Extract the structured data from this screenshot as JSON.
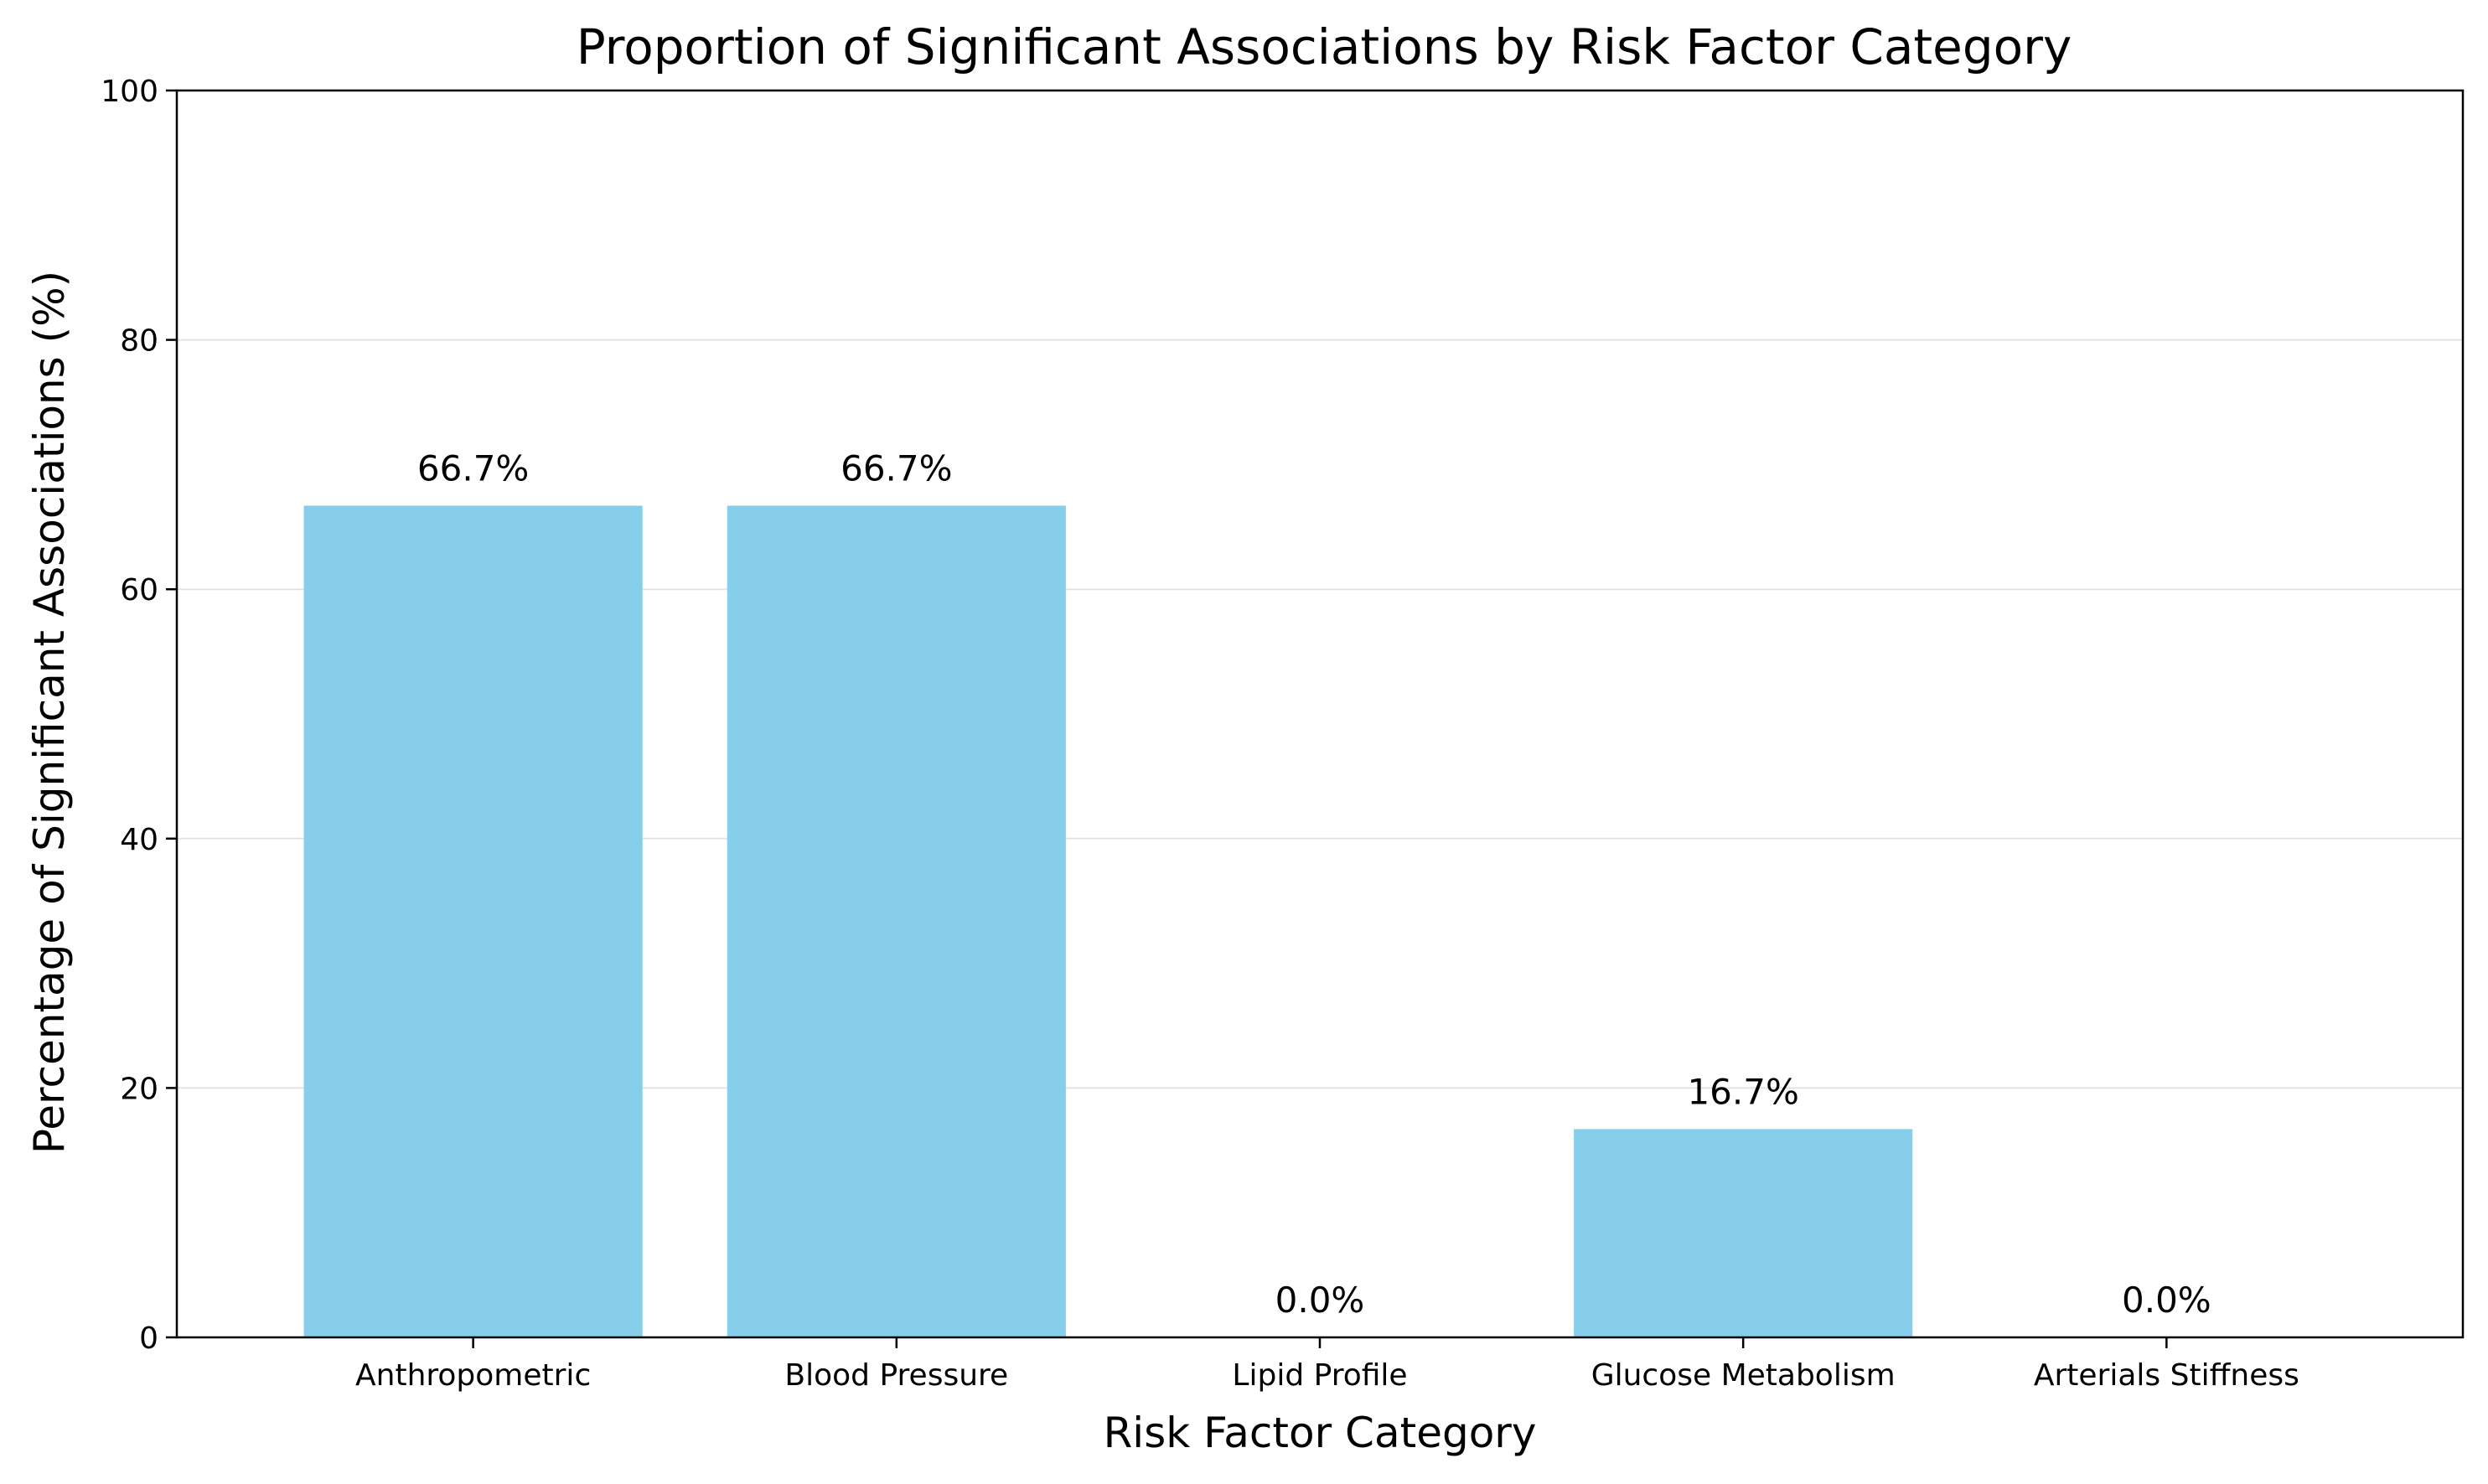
{
  "chart_data": {
    "type": "bar",
    "title": "Proportion of Significant Associations by Risk Factor Category",
    "xlabel": "Risk Factor Category",
    "ylabel": "Percentage of Significant Associations (%)",
    "categories": [
      "Anthropometric",
      "Blood Pressure",
      "Lipid Profile",
      "Glucose Metabolism",
      "Arterials Stiffness"
    ],
    "values": [
      66.7,
      66.7,
      0.0,
      16.7,
      0.0
    ],
    "value_labels": [
      "66.7%",
      "66.7%",
      "0.0%",
      "16.7%",
      "0.0%"
    ],
    "ylim": [
      0,
      100
    ],
    "yticks": [
      0,
      20,
      40,
      60,
      80,
      100
    ],
    "grid": "y",
    "bar_color": "#87CEEB"
  }
}
